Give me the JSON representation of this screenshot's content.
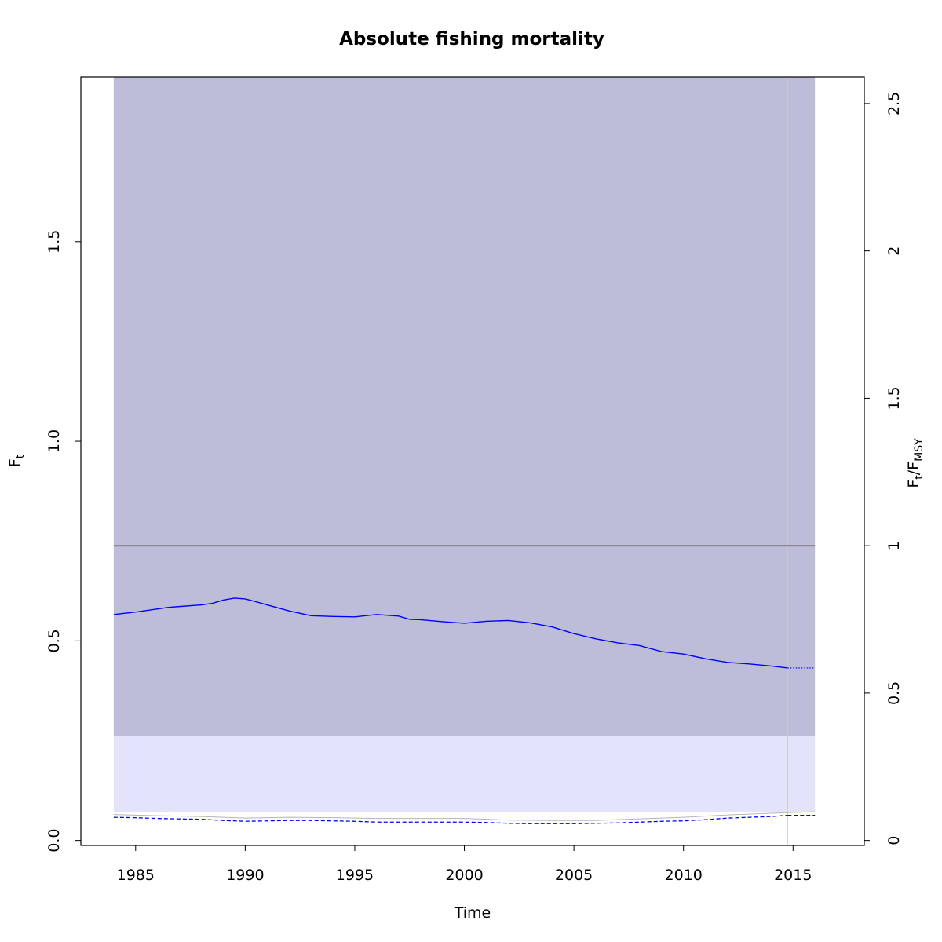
{
  "chart_data": {
    "type": "line",
    "title": "Absolute fishing mortality",
    "xlabel": "Time",
    "ylabel": "F",
    "ylabel_subscript": "t",
    "y2label_parts": [
      "F",
      "t",
      "/F",
      "MSY"
    ],
    "xlim": [
      1982.5,
      2018.25
    ],
    "ylim": [
      -0.0125,
      1.9125
    ],
    "y2lim": [
      -0.0169,
      2.5903
    ],
    "x_ticks": [
      "1985",
      "1990",
      "1995",
      "2000",
      "2005",
      "2010",
      "2015"
    ],
    "y_ticks": [
      "0.0",
      "0.5",
      "1.0",
      "1.5"
    ],
    "y2_ticks": [
      "0",
      "0.5",
      "1",
      "1.5",
      "2",
      "2.5"
    ],
    "grid": false,
    "legend": "none",
    "fmsy": 0.738,
    "fmsy_ratio": 1,
    "forecast_start": 2014.75,
    "data_end": 2016.0,
    "colors": {
      "band_dark": "#bdbdd9",
      "band_light": "#e3e3fc",
      "estimate": "#0000ff",
      "reference": "#555555",
      "ci_edge": "#b5b5b5",
      "forecast_marker": "#c8c8c8",
      "frame": "#000000"
    },
    "bands": {
      "fmsy_band": {
        "x": [
          1984.0,
          2016.0
        ],
        "y": [
          0.262,
          1.9125
        ]
      },
      "low_band": {
        "x": [
          1984.0,
          2016.0
        ],
        "y": [
          0.072,
          0.262
        ]
      }
    },
    "series": [
      {
        "role": "estimate",
        "x": [
          1984.0,
          1985.0,
          1986.0,
          1986.5,
          1987.0,
          1988.0,
          1988.5,
          1989.0,
          1989.5,
          1990.0,
          1990.5,
          1991.0,
          1992.0,
          1993.0,
          1994.0,
          1995.0,
          1996.0,
          1997.0,
          1997.5,
          1998.0,
          1999.0,
          2000.0,
          2001.0,
          2002.0,
          2003.0,
          2004.0,
          2005.0,
          2006.0,
          2007.0,
          2008.0,
          2009.0,
          2010.0,
          2011.0,
          2012.0,
          2013.0,
          2014.0,
          2014.75
        ],
        "y": [
          0.566,
          0.572,
          0.58,
          0.584,
          0.586,
          0.59,
          0.594,
          0.602,
          0.607,
          0.605,
          0.598,
          0.59,
          0.575,
          0.563,
          0.561,
          0.56,
          0.566,
          0.562,
          0.554,
          0.553,
          0.548,
          0.544,
          0.549,
          0.551,
          0.545,
          0.535,
          0.518,
          0.505,
          0.495,
          0.488,
          0.473,
          0.467,
          0.455,
          0.446,
          0.442,
          0.437,
          0.432
        ]
      },
      {
        "role": "estimate-forecast",
        "x": [
          2014.75,
          2016.0
        ],
        "y": [
          0.432,
          0.432
        ]
      },
      {
        "role": "lower-ci",
        "x": [
          1984.0,
          1985.0,
          1986.0,
          1987.0,
          1988.0,
          1989.0,
          1990.0,
          1991.0,
          1992.0,
          1993.0,
          1994.0,
          1995.0,
          1996.0,
          1997.0,
          1998.0,
          1999.0,
          2000.0,
          2001.0,
          2002.0,
          2003.0,
          2004.0,
          2005.0,
          2006.0,
          2007.0,
          2008.0,
          2009.0,
          2010.0,
          2011.0,
          2012.0,
          2013.0,
          2014.0,
          2014.75
        ],
        "y": [
          0.058,
          0.057,
          0.055,
          0.054,
          0.053,
          0.05,
          0.048,
          0.049,
          0.05,
          0.05,
          0.049,
          0.048,
          0.046,
          0.046,
          0.046,
          0.046,
          0.046,
          0.045,
          0.043,
          0.042,
          0.042,
          0.042,
          0.043,
          0.044,
          0.046,
          0.048,
          0.049,
          0.052,
          0.056,
          0.058,
          0.06,
          0.063
        ]
      },
      {
        "role": "lower-ci-forecast",
        "x": [
          2014.75,
          2016.0
        ],
        "y": [
          0.063,
          0.063
        ]
      },
      {
        "role": "lower-ci-edge",
        "x": [
          1984.0,
          1986.0,
          1988.0,
          1990.0,
          1992.0,
          1994.0,
          1996.0,
          1998.0,
          2000.0,
          2002.0,
          2004.0,
          2006.0,
          2008.0,
          2010.0,
          2012.0,
          2014.0,
          2016.0
        ],
        "y": [
          0.065,
          0.062,
          0.06,
          0.056,
          0.058,
          0.057,
          0.055,
          0.055,
          0.055,
          0.051,
          0.05,
          0.05,
          0.054,
          0.058,
          0.064,
          0.068,
          0.072
        ]
      }
    ]
  }
}
